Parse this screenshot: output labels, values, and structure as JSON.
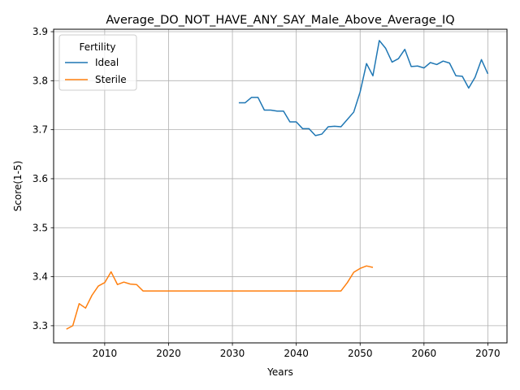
{
  "chart_data": {
    "type": "line",
    "title": "Average_DO_NOT_HAVE_ANY_SAY_Male_Above_Average_IQ",
    "xlabel": "Years",
    "ylabel": "Score(1-5)",
    "xlim": [
      2002,
      2073
    ],
    "ylim": [
      3.265,
      3.905
    ],
    "xticks": [
      2010,
      2020,
      2030,
      2040,
      2050,
      2060,
      2070
    ],
    "yticks": [
      3.3,
      3.4,
      3.5,
      3.6,
      3.7,
      3.8,
      3.9
    ],
    "xtick_labels": [
      "2010",
      "2020",
      "2030",
      "2040",
      "2050",
      "2060",
      "2070"
    ],
    "ytick_labels": [
      "3.3",
      "3.4",
      "3.5",
      "3.6",
      "3.7",
      "3.8",
      "3.9"
    ],
    "grid": true,
    "legend": {
      "title": "Fertility",
      "placement": "top-left"
    },
    "series": [
      {
        "name": "Ideal",
        "color": "#1f77b4",
        "x": [
          2031,
          2032,
          2033,
          2034,
          2035,
          2036,
          2037,
          2038,
          2039,
          2040,
          2041,
          2042,
          2043,
          2044,
          2045,
          2046,
          2047,
          2048,
          2049,
          2050,
          2051,
          2052,
          2053,
          2054,
          2055,
          2056,
          2057,
          2058,
          2059,
          2060,
          2061,
          2062,
          2063,
          2064,
          2065,
          2066,
          2067,
          2068,
          2069,
          2070
        ],
        "y": [
          3.755,
          3.755,
          3.766,
          3.766,
          3.74,
          3.74,
          3.738,
          3.738,
          3.716,
          3.716,
          3.702,
          3.702,
          3.688,
          3.691,
          3.706,
          3.707,
          3.706,
          3.721,
          3.736,
          3.777,
          3.835,
          3.81,
          3.882,
          3.866,
          3.838,
          3.845,
          3.864,
          3.829,
          3.83,
          3.826,
          3.837,
          3.833,
          3.84,
          3.836,
          3.81,
          3.809,
          3.785,
          3.807,
          3.843,
          3.814
        ]
      },
      {
        "name": "Sterile",
        "color": "#ff7f0e",
        "x": [
          2004,
          2005,
          2006,
          2007,
          2008,
          2009,
          2010,
          2011,
          2012,
          2013,
          2014,
          2015,
          2016,
          2017,
          2018,
          2019,
          2020,
          2021,
          2022,
          2023,
          2024,
          2025,
          2026,
          2027,
          2028,
          2029,
          2030,
          2031,
          2032,
          2033,
          2034,
          2035,
          2036,
          2037,
          2038,
          2039,
          2040,
          2041,
          2042,
          2043,
          2044,
          2045,
          2046,
          2047,
          2048,
          2049,
          2050,
          2051,
          2052
        ],
        "y": [
          3.293,
          3.3,
          3.345,
          3.336,
          3.362,
          3.381,
          3.388,
          3.41,
          3.384,
          3.389,
          3.385,
          3.384,
          3.371,
          3.371,
          3.371,
          3.371,
          3.371,
          3.371,
          3.371,
          3.371,
          3.371,
          3.371,
          3.371,
          3.371,
          3.371,
          3.371,
          3.371,
          3.371,
          3.371,
          3.371,
          3.371,
          3.371,
          3.371,
          3.371,
          3.371,
          3.371,
          3.371,
          3.371,
          3.371,
          3.371,
          3.371,
          3.371,
          3.371,
          3.371,
          3.388,
          3.409,
          3.417,
          3.422,
          3.419
        ]
      }
    ]
  }
}
